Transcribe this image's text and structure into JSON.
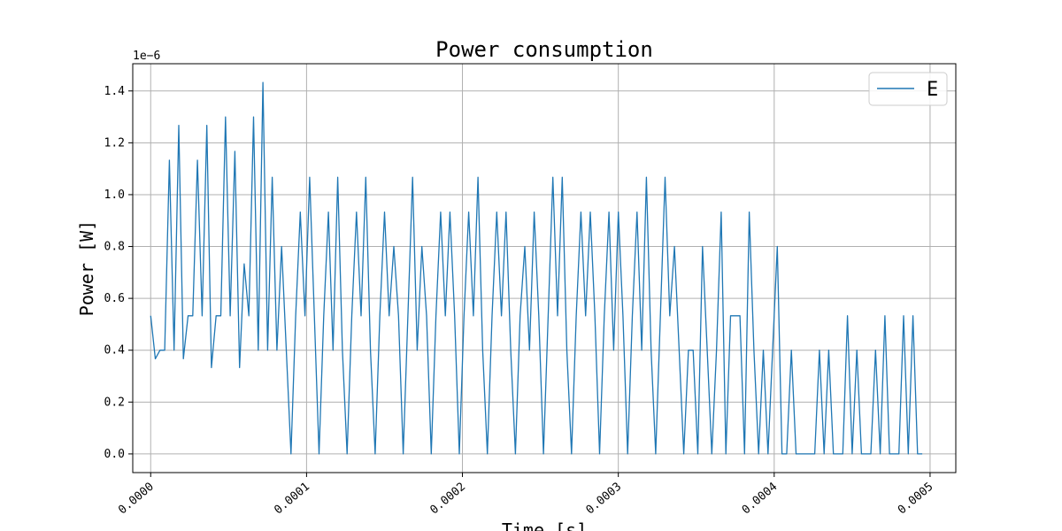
{
  "chart_data": {
    "type": "line",
    "title": "Power consumption",
    "xlabel": "Time [s]",
    "ylabel": "Power [W]",
    "y_offset_label": "1e−6",
    "xlim": [
      -1.15e-05,
      0.0005165
    ],
    "ylim": [
      -0.072,
      1.505
    ],
    "x_ticks": [
      0.0,
      0.0001,
      0.0002,
      0.0003,
      0.0004,
      0.0005
    ],
    "x_tick_labels": [
      "0.0000",
      "0.0001",
      "0.0002",
      "0.0003",
      "0.0004",
      "0.0005"
    ],
    "y_ticks": [
      0.0,
      0.2,
      0.4,
      0.6,
      0.8,
      1.0,
      1.2,
      1.4
    ],
    "y_tick_labels": [
      "0.0",
      "0.2",
      "0.4",
      "0.6",
      "0.8",
      "1.0",
      "1.2",
      "1.4"
    ],
    "grid": true,
    "legend_position": "top-right",
    "colors": {
      "series": "#1f77b4",
      "grid": "#b0b0b0"
    },
    "series": [
      {
        "name": "E",
        "x": [
          0.0,
          3e-06,
          6e-06,
          9e-06,
          1.2e-05,
          1.5e-05,
          1.8e-05,
          2.1e-05,
          2.4e-05,
          2.7e-05,
          3e-05,
          3.3e-05,
          3.6e-05,
          3.9e-05,
          4.2e-05,
          4.5e-05,
          4.8e-05,
          5.1e-05,
          5.4e-05,
          5.7e-05,
          6e-05,
          6.3e-05,
          6.6e-05,
          6.9e-05,
          7.2e-05,
          7.5e-05,
          7.8e-05,
          8.1e-05,
          8.4e-05,
          8.7e-05,
          9e-05,
          9.3e-05,
          9.6e-05,
          9.9e-05,
          0.000102,
          0.000105,
          0.000108,
          0.000111,
          0.000114,
          0.000117,
          0.00012,
          0.000123,
          0.000126,
          0.000129,
          0.000132,
          0.000135,
          0.000138,
          0.000141,
          0.000144,
          0.000147,
          0.00015,
          0.000153,
          0.000156,
          0.000159,
          0.000162,
          0.000165,
          0.000168,
          0.000171,
          0.000174,
          0.000177,
          0.00018,
          0.000183,
          0.000186,
          0.000189,
          0.000192,
          0.000195,
          0.000198,
          0.000201,
          0.000204,
          0.000207,
          0.00021,
          0.000213,
          0.000216,
          0.000219,
          0.000222,
          0.000225,
          0.000228,
          0.000231,
          0.000234,
          0.000237,
          0.00024,
          0.000243,
          0.000246,
          0.000249,
          0.000252,
          0.000255,
          0.000258,
          0.000261,
          0.000264,
          0.000267,
          0.00027,
          0.000273,
          0.000276,
          0.000279,
          0.000282,
          0.000285,
          0.000288,
          0.000291,
          0.000294,
          0.000297,
          0.0003,
          0.000303,
          0.000306,
          0.000309,
          0.000312,
          0.000315,
          0.000318,
          0.000321,
          0.000324,
          0.000327,
          0.00033,
          0.000333,
          0.000336,
          0.000339,
          0.000342,
          0.000345,
          0.000348,
          0.000351,
          0.000354,
          0.000357,
          0.00036,
          0.000363,
          0.000366,
          0.000369,
          0.000372,
          0.000375,
          0.000378,
          0.000381,
          0.000384,
          0.000387,
          0.00039,
          0.000393,
          0.000396,
          0.000399,
          0.000402,
          0.000405,
          0.000408,
          0.000411,
          0.000414,
          0.000417,
          0.00042,
          0.000423,
          0.000426,
          0.000429,
          0.000432,
          0.000435,
          0.000438,
          0.000441,
          0.000444,
          0.000447,
          0.00045,
          0.000453,
          0.000456,
          0.000459,
          0.000462,
          0.000465,
          0.000468,
          0.000471,
          0.000474,
          0.000477,
          0.00048,
          0.000483,
          0.000486,
          0.000489,
          0.000492,
          0.000495
        ],
        "y": [
          0.533,
          0.367,
          0.4,
          0.4,
          1.133,
          0.4,
          1.267,
          0.367,
          0.533,
          0.533,
          1.133,
          0.533,
          1.267,
          0.333,
          0.533,
          0.533,
          1.3,
          0.533,
          1.167,
          0.333,
          0.733,
          0.533,
          1.3,
          0.4,
          1.433,
          0.4,
          1.067,
          0.4,
          0.8,
          0.4,
          0.0,
          0.533,
          0.933,
          0.533,
          1.067,
          0.533,
          0.0,
          0.533,
          0.933,
          0.4,
          1.067,
          0.4,
          0.0,
          0.533,
          0.933,
          0.533,
          1.067,
          0.4,
          0.0,
          0.533,
          0.933,
          0.533,
          0.8,
          0.533,
          0.0,
          0.533,
          1.067,
          0.4,
          0.8,
          0.533,
          0.0,
          0.533,
          0.933,
          0.533,
          0.933,
          0.533,
          0.0,
          0.533,
          0.933,
          0.533,
          1.067,
          0.4,
          0.0,
          0.533,
          0.933,
          0.533,
          0.933,
          0.4,
          0.0,
          0.533,
          0.8,
          0.4,
          0.933,
          0.533,
          0.0,
          0.533,
          1.067,
          0.533,
          1.067,
          0.4,
          0.0,
          0.533,
          0.933,
          0.533,
          0.933,
          0.533,
          0.0,
          0.533,
          0.933,
          0.4,
          0.933,
          0.533,
          0.0,
          0.533,
          0.933,
          0.4,
          1.067,
          0.4,
          0.0,
          0.533,
          1.067,
          0.533,
          0.8,
          0.4,
          0.0,
          0.4,
          0.4,
          0.0,
          0.8,
          0.4,
          0.0,
          0.4,
          0.933,
          0.0,
          0.533,
          0.533,
          0.533,
          0.0,
          0.933,
          0.4,
          0.0,
          0.4,
          0.0,
          0.4,
          0.8,
          0.0,
          0.0,
          0.4,
          0.0,
          0.0,
          0.0,
          0.0,
          0.0,
          0.4,
          0.0,
          0.4,
          0.0,
          0.0,
          0.0,
          0.533,
          0.0,
          0.4,
          0.0,
          0.0,
          0.0,
          0.4,
          0.0,
          0.533,
          0.0,
          0.0,
          0.0,
          0.533,
          0.0,
          0.533,
          0.0,
          0.0
        ]
      }
    ]
  }
}
